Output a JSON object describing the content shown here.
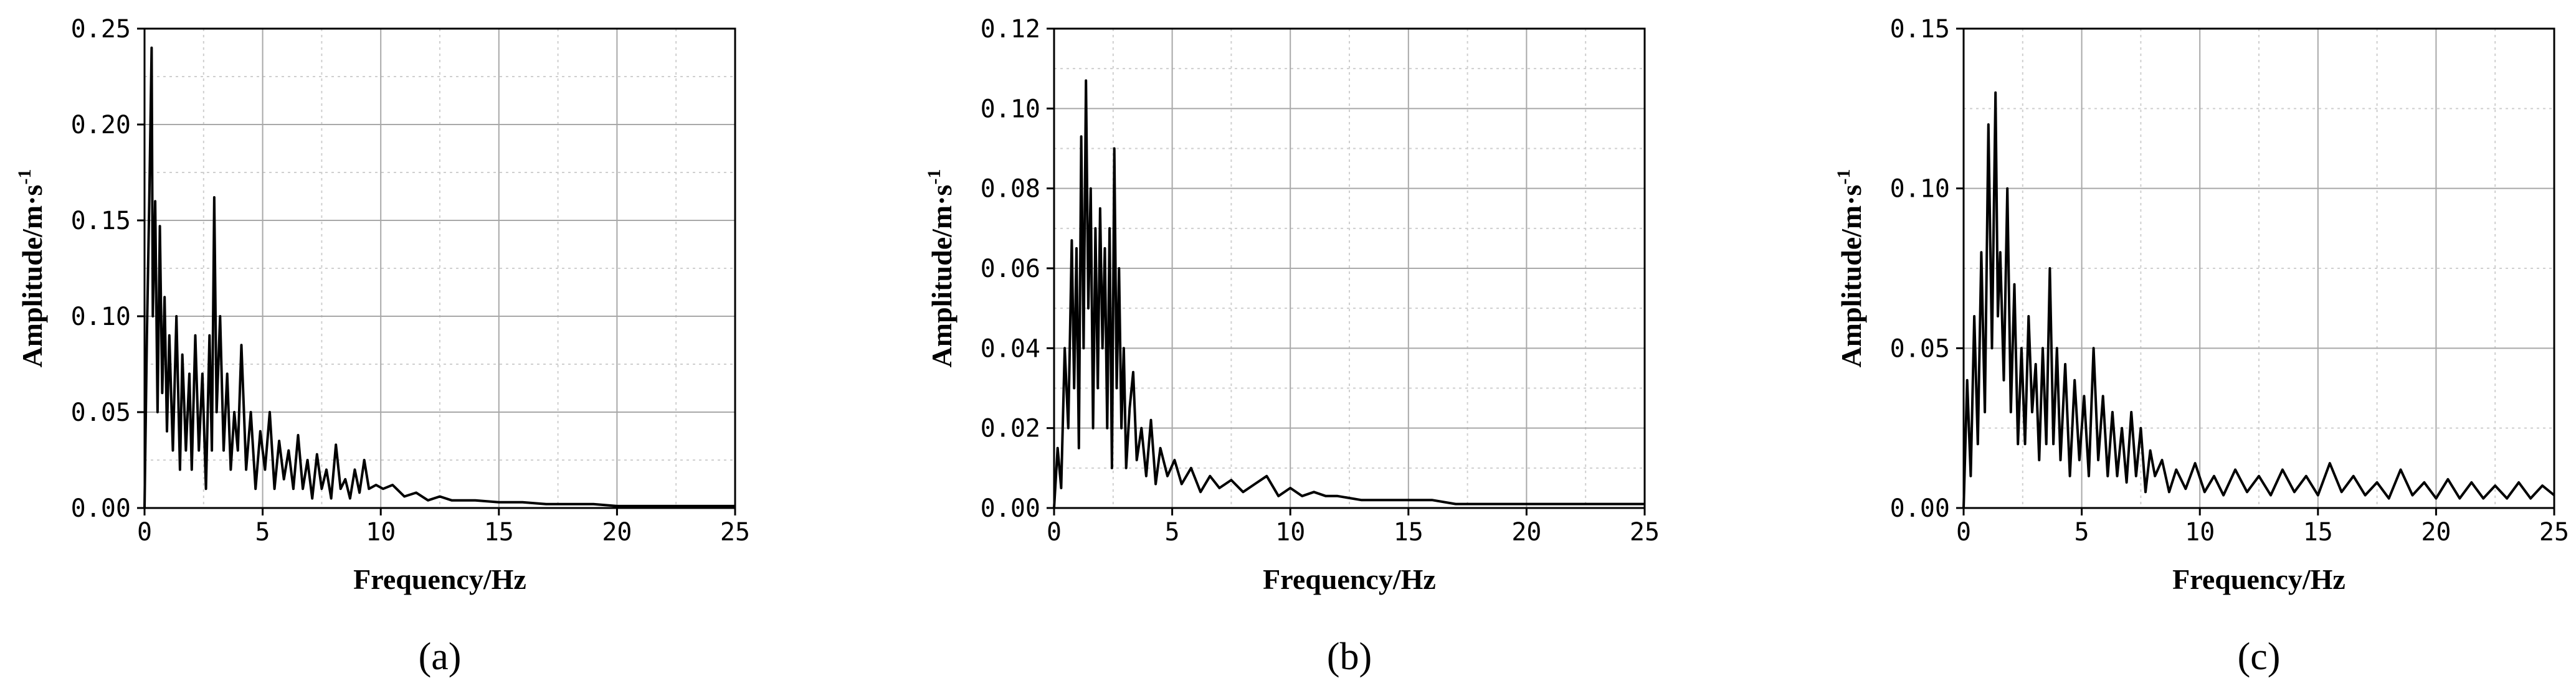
{
  "chart_data": [
    {
      "type": "line",
      "panel_label": "(a)",
      "xlabel": "Frequency/Hz",
      "ylabel": "Amplitude/m·s",
      "ylabel_sup": "-1",
      "xlim": [
        0,
        25
      ],
      "ylim": [
        0,
        0.25
      ],
      "xticks": [
        0,
        5,
        10,
        15,
        20,
        25
      ],
      "yticks": [
        0.0,
        0.05,
        0.1,
        0.15,
        0.2,
        0.25
      ],
      "xtick_labels": [
        "0",
        "5",
        "10",
        "15",
        "20",
        "25"
      ],
      "ytick_labels": [
        "0.00",
        "0.05",
        "0.10",
        "0.15",
        "0.20",
        "0.25"
      ],
      "grid": true,
      "series": [
        {
          "color": "#000000",
          "x": [
            0.0,
            0.1,
            0.2,
            0.3,
            0.35,
            0.45,
            0.55,
            0.65,
            0.75,
            0.85,
            0.95,
            1.05,
            1.2,
            1.35,
            1.5,
            1.6,
            1.75,
            1.9,
            2.0,
            2.15,
            2.3,
            2.45,
            2.6,
            2.75,
            2.85,
            2.95,
            3.05,
            3.2,
            3.35,
            3.5,
            3.65,
            3.8,
            3.95,
            4.1,
            4.3,
            4.5,
            4.7,
            4.9,
            5.1,
            5.3,
            5.5,
            5.7,
            5.9,
            6.1,
            6.3,
            6.5,
            6.7,
            6.9,
            7.1,
            7.3,
            7.5,
            7.7,
            7.9,
            8.1,
            8.3,
            8.5,
            8.7,
            8.9,
            9.1,
            9.3,
            9.5,
            9.8,
            10.1,
            10.5,
            11.0,
            11.5,
            12.0,
            12.5,
            13.0,
            14.0,
            15.0,
            16.0,
            17.0,
            18.0,
            19.0,
            20.0,
            21.0,
            22.0,
            23.0,
            24.0,
            25.0
          ],
          "y": [
            0.0,
            0.09,
            0.16,
            0.24,
            0.1,
            0.16,
            0.05,
            0.147,
            0.06,
            0.11,
            0.04,
            0.09,
            0.03,
            0.1,
            0.02,
            0.08,
            0.03,
            0.07,
            0.02,
            0.09,
            0.03,
            0.07,
            0.01,
            0.09,
            0.03,
            0.162,
            0.05,
            0.1,
            0.03,
            0.07,
            0.02,
            0.05,
            0.03,
            0.085,
            0.02,
            0.05,
            0.01,
            0.04,
            0.02,
            0.05,
            0.01,
            0.035,
            0.015,
            0.03,
            0.01,
            0.038,
            0.01,
            0.025,
            0.005,
            0.028,
            0.01,
            0.02,
            0.005,
            0.033,
            0.01,
            0.015,
            0.005,
            0.02,
            0.008,
            0.025,
            0.01,
            0.012,
            0.01,
            0.012,
            0.006,
            0.008,
            0.004,
            0.006,
            0.004,
            0.004,
            0.003,
            0.003,
            0.002,
            0.002,
            0.002,
            0.001,
            0.001,
            0.001,
            0.001,
            0.001,
            0.001
          ]
        }
      ]
    },
    {
      "type": "line",
      "panel_label": "(b)",
      "xlabel": "Frequency/Hz",
      "ylabel": "Amplitude/m·s",
      "ylabel_sup": "-1",
      "xlim": [
        0,
        25
      ],
      "ylim": [
        0,
        0.12
      ],
      "xticks": [
        0,
        5,
        10,
        15,
        20,
        25
      ],
      "yticks": [
        0.0,
        0.02,
        0.04,
        0.06,
        0.08,
        0.1,
        0.12
      ],
      "xtick_labels": [
        "0",
        "5",
        "10",
        "15",
        "20",
        "25"
      ],
      "ytick_labels": [
        "0.00",
        "0.02",
        "0.04",
        "0.06",
        "0.08",
        "0.10",
        "0.12"
      ],
      "grid": true,
      "series": [
        {
          "color": "#000000",
          "x": [
            0.0,
            0.15,
            0.3,
            0.45,
            0.6,
            0.75,
            0.85,
            0.95,
            1.05,
            1.15,
            1.25,
            1.35,
            1.45,
            1.55,
            1.65,
            1.75,
            1.85,
            1.95,
            2.05,
            2.15,
            2.25,
            2.35,
            2.45,
            2.55,
            2.65,
            2.75,
            2.85,
            2.95,
            3.05,
            3.2,
            3.35,
            3.5,
            3.7,
            3.9,
            4.1,
            4.3,
            4.5,
            4.8,
            5.1,
            5.4,
            5.8,
            6.2,
            6.6,
            7.0,
            7.5,
            8.0,
            8.5,
            9.0,
            9.5,
            10.0,
            10.5,
            11.0,
            11.5,
            12.0,
            13.0,
            14.0,
            15.0,
            16.0,
            17.0,
            18.0,
            19.0,
            20.0,
            21.0,
            22.0,
            23.0,
            24.0,
            25.0
          ],
          "y": [
            0.0,
            0.015,
            0.005,
            0.04,
            0.02,
            0.067,
            0.03,
            0.065,
            0.015,
            0.093,
            0.04,
            0.107,
            0.05,
            0.08,
            0.02,
            0.07,
            0.03,
            0.075,
            0.04,
            0.065,
            0.02,
            0.07,
            0.01,
            0.09,
            0.03,
            0.06,
            0.02,
            0.04,
            0.01,
            0.025,
            0.034,
            0.012,
            0.02,
            0.008,
            0.022,
            0.006,
            0.015,
            0.008,
            0.012,
            0.006,
            0.01,
            0.004,
            0.008,
            0.005,
            0.007,
            0.004,
            0.006,
            0.008,
            0.003,
            0.005,
            0.003,
            0.004,
            0.003,
            0.003,
            0.002,
            0.002,
            0.002,
            0.002,
            0.001,
            0.001,
            0.001,
            0.001,
            0.001,
            0.001,
            0.001,
            0.001,
            0.001
          ]
        }
      ]
    },
    {
      "type": "line",
      "panel_label": "(c)",
      "xlabel": "Frequency/Hz",
      "ylabel": "Amplitude/m·s",
      "ylabel_sup": "-1",
      "xlim": [
        0,
        25
      ],
      "ylim": [
        0,
        0.15
      ],
      "xticks": [
        0,
        5,
        10,
        15,
        20,
        25
      ],
      "yticks": [
        0.0,
        0.05,
        0.1,
        0.15
      ],
      "xtick_labels": [
        "0",
        "5",
        "10",
        "15",
        "20",
        "25"
      ],
      "ytick_labels": [
        "0.00",
        "0.05",
        "0.10",
        "0.15"
      ],
      "grid": true,
      "series": [
        {
          "color": "#000000",
          "x": [
            0.0,
            0.15,
            0.3,
            0.45,
            0.6,
            0.75,
            0.9,
            1.05,
            1.2,
            1.35,
            1.45,
            1.55,
            1.7,
            1.85,
            2.0,
            2.15,
            2.3,
            2.45,
            2.6,
            2.75,
            2.9,
            3.05,
            3.2,
            3.35,
            3.5,
            3.65,
            3.8,
            3.95,
            4.1,
            4.3,
            4.5,
            4.7,
            4.9,
            5.1,
            5.3,
            5.5,
            5.7,
            5.9,
            6.1,
            6.3,
            6.5,
            6.7,
            6.9,
            7.1,
            7.3,
            7.5,
            7.7,
            7.9,
            8.1,
            8.4,
            8.7,
            9.0,
            9.4,
            9.8,
            10.2,
            10.6,
            11.0,
            11.5,
            12.0,
            12.5,
            13.0,
            13.5,
            14.0,
            14.5,
            15.0,
            15.5,
            16.0,
            16.5,
            17.0,
            17.5,
            18.0,
            18.5,
            19.0,
            19.5,
            20.0,
            20.5,
            21.0,
            21.5,
            22.0,
            22.5,
            23.0,
            23.5,
            24.0,
            24.5,
            25.0
          ],
          "y": [
            0.0,
            0.04,
            0.01,
            0.06,
            0.02,
            0.08,
            0.03,
            0.12,
            0.05,
            0.13,
            0.06,
            0.08,
            0.04,
            0.1,
            0.03,
            0.07,
            0.02,
            0.05,
            0.02,
            0.06,
            0.03,
            0.045,
            0.015,
            0.05,
            0.02,
            0.075,
            0.02,
            0.05,
            0.015,
            0.045,
            0.01,
            0.04,
            0.015,
            0.035,
            0.01,
            0.05,
            0.015,
            0.035,
            0.01,
            0.03,
            0.01,
            0.025,
            0.008,
            0.03,
            0.01,
            0.025,
            0.005,
            0.018,
            0.01,
            0.015,
            0.005,
            0.012,
            0.006,
            0.014,
            0.005,
            0.01,
            0.004,
            0.012,
            0.005,
            0.01,
            0.004,
            0.012,
            0.005,
            0.01,
            0.004,
            0.014,
            0.005,
            0.01,
            0.004,
            0.008,
            0.003,
            0.012,
            0.004,
            0.008,
            0.003,
            0.009,
            0.003,
            0.008,
            0.003,
            0.007,
            0.003,
            0.008,
            0.003,
            0.007,
            0.004
          ]
        }
      ]
    }
  ]
}
